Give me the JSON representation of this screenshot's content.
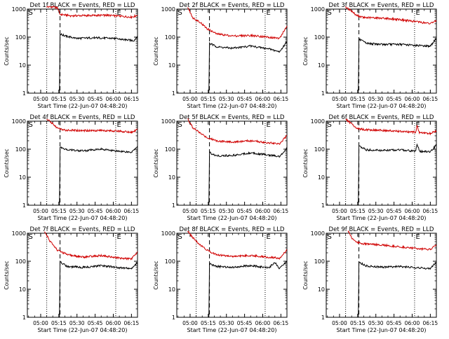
{
  "chart_data": [
    {
      "type": "line",
      "title": "Det 1f BLACK = Events, RED = LLD",
      "xlabel": "Start Time (22-Jun-07 04:48:20)",
      "ylabel": "Counts/sec",
      "yscale": "log",
      "ylim": [
        1,
        1000
      ],
      "xlim": [
        "04:49",
        "06:20"
      ],
      "xticks": [
        "05:00",
        "05:15",
        "05:30",
        "05:45",
        "06:00",
        "06:15"
      ],
      "yticks": [
        "1",
        "10",
        "100",
        "1000"
      ],
      "markers": [
        {
          "label": "S",
          "time": "04:49",
          "style": "dotted"
        },
        {
          "label": "",
          "time": "05:05",
          "style": "dotted"
        },
        {
          "label": "",
          "time": "05:16",
          "style": "dashed"
        },
        {
          "label": "E",
          "time": "06:02",
          "style": "dotted"
        },
        {
          "label": "",
          "time": "06:20",
          "style": "dotted"
        }
      ],
      "series": [
        {
          "name": "LLD",
          "color": "#d00000",
          "x": [
            "05:05",
            "05:10",
            "05:14",
            "05:16",
            "05:25",
            "05:40",
            "05:55",
            "06:05",
            "06:15",
            "06:20"
          ],
          "y": [
            1200,
            1200,
            1100,
            650,
            580,
            590,
            600,
            560,
            520,
            600
          ]
        },
        {
          "name": "Events",
          "color": "#000000",
          "x": [
            "05:15.5",
            "05:16",
            "05:20",
            "05:30",
            "05:45",
            "06:00",
            "06:10",
            "06:17",
            "06:20"
          ],
          "y": [
            1,
            130,
            110,
            90,
            95,
            90,
            80,
            75,
            110
          ]
        }
      ]
    },
    {
      "type": "line",
      "title": "Det 2f BLACK = Events, RED = LLD",
      "xlabel": "Start Time (22-Jun-07 04:48:20)",
      "ylabel": "Counts/sec",
      "yscale": "log",
      "ylim": [
        1,
        1000
      ],
      "xlim": [
        "04:49",
        "06:20"
      ],
      "xticks": [
        "05:00",
        "05:15",
        "05:30",
        "05:45",
        "06:00",
        "06:15"
      ],
      "yticks": [
        "1",
        "10",
        "100",
        "1000"
      ],
      "markers": [
        {
          "label": "S",
          "time": "04:49",
          "style": "dotted"
        },
        {
          "label": "",
          "time": "05:05",
          "style": "dotted"
        },
        {
          "label": "",
          "time": "05:16",
          "style": "dashed"
        },
        {
          "label": "E",
          "time": "06:02",
          "style": "dotted"
        },
        {
          "label": "",
          "time": "06:20",
          "style": "dotted"
        }
      ],
      "series": [
        {
          "name": "LLD",
          "color": "#d00000",
          "x": [
            "04:58",
            "05:02",
            "05:08",
            "05:14",
            "05:22",
            "05:35",
            "05:50",
            "06:05",
            "06:14",
            "06:20"
          ],
          "y": [
            1200,
            500,
            350,
            200,
            130,
            110,
            115,
            100,
            90,
            250
          ]
        },
        {
          "name": "Events",
          "color": "#000000",
          "x": [
            "05:15.5",
            "05:16",
            "05:22",
            "05:35",
            "05:50",
            "06:05",
            "06:14",
            "06:20"
          ],
          "y": [
            1,
            60,
            45,
            40,
            48,
            38,
            30,
            70
          ]
        }
      ]
    },
    {
      "type": "line",
      "title": "Det 3f BLACK = Events, RED = LLD",
      "xlabel": "Start Time (22-Jun-07 04:48:20)",
      "ylabel": "Counts/sec",
      "yscale": "log",
      "ylim": [
        1,
        1000
      ],
      "xlim": [
        "04:49",
        "06:20"
      ],
      "xticks": [
        "05:00",
        "05:15",
        "05:30",
        "05:45",
        "06:00",
        "06:15"
      ],
      "yticks": [
        "1",
        "10",
        "100",
        "1000"
      ],
      "markers": [
        {
          "label": "S",
          "time": "04:49",
          "style": "dotted"
        },
        {
          "label": "",
          "time": "05:05",
          "style": "dotted"
        },
        {
          "label": "",
          "time": "05:16",
          "style": "dashed"
        },
        {
          "label": "E",
          "time": "06:02",
          "style": "dotted"
        },
        {
          "label": "",
          "time": "06:20",
          "style": "dotted"
        }
      ],
      "series": [
        {
          "name": "LLD",
          "color": "#d00000",
          "x": [
            "05:05",
            "05:10",
            "05:14",
            "05:20",
            "05:35",
            "05:50",
            "06:05",
            "06:15",
            "06:20"
          ],
          "y": [
            1200,
            850,
            600,
            500,
            480,
            420,
            350,
            300,
            400
          ]
        },
        {
          "name": "Events",
          "color": "#000000",
          "x": [
            "05:15.5",
            "05:16",
            "05:22",
            "05:35",
            "05:50",
            "06:05",
            "06:15",
            "06:20"
          ],
          "y": [
            1,
            85,
            60,
            55,
            55,
            50,
            48,
            90
          ]
        }
      ]
    },
    {
      "type": "line",
      "title": "Det 4f BLACK = Events, RED = LLD",
      "xlabel": "Start Time (22-Jun-07 04:48:20)",
      "ylabel": "Counts/sec",
      "yscale": "log",
      "ylim": [
        1,
        1000
      ],
      "xlim": [
        "04:49",
        "06:20"
      ],
      "xticks": [
        "05:00",
        "05:15",
        "05:30",
        "05:45",
        "06:00",
        "06:15"
      ],
      "yticks": [
        "1",
        "10",
        "100",
        "1000"
      ],
      "markers": [
        {
          "label": "S",
          "time": "04:49",
          "style": "dotted"
        },
        {
          "label": "",
          "time": "05:05",
          "style": "dotted"
        },
        {
          "label": "",
          "time": "05:16",
          "style": "dashed"
        },
        {
          "label": "E",
          "time": "06:02",
          "style": "dotted"
        },
        {
          "label": "",
          "time": "06:20",
          "style": "dotted"
        }
      ],
      "series": [
        {
          "name": "LLD",
          "color": "#d00000",
          "x": [
            "05:05",
            "05:10",
            "05:14",
            "05:20",
            "05:35",
            "05:50",
            "06:05",
            "06:15",
            "06:20"
          ],
          "y": [
            1200,
            800,
            550,
            480,
            460,
            470,
            440,
            400,
            500
          ]
        },
        {
          "name": "Events",
          "color": "#000000",
          "x": [
            "05:15.5",
            "05:16",
            "05:22",
            "05:35",
            "05:50",
            "06:05",
            "06:15",
            "06:20"
          ],
          "y": [
            1,
            120,
            95,
            88,
            100,
            85,
            78,
            130
          ]
        }
      ]
    },
    {
      "type": "line",
      "title": "Det 5f BLACK = Events, RED = LLD",
      "xlabel": "Start Time (22-Jun-07 04:48:20)",
      "ylabel": "Counts/sec",
      "yscale": "log",
      "ylim": [
        1,
        1000
      ],
      "xlim": [
        "04:49",
        "06:20"
      ],
      "xticks": [
        "05:00",
        "05:15",
        "05:30",
        "05:45",
        "06:00",
        "06:15"
      ],
      "yticks": [
        "1",
        "10",
        "100",
        "1000"
      ],
      "markers": [
        {
          "label": "S",
          "time": "04:49",
          "style": "dotted"
        },
        {
          "label": "",
          "time": "05:05",
          "style": "dotted"
        },
        {
          "label": "",
          "time": "05:16",
          "style": "dashed"
        },
        {
          "label": "E",
          "time": "06:02",
          "style": "dotted"
        },
        {
          "label": "",
          "time": "06:20",
          "style": "dotted"
        }
      ],
      "series": [
        {
          "name": "LLD",
          "color": "#d00000",
          "x": [
            "04:58",
            "05:02",
            "05:08",
            "05:14",
            "05:22",
            "05:35",
            "05:50",
            "06:05",
            "06:14",
            "06:20"
          ],
          "y": [
            1200,
            600,
            380,
            260,
            200,
            180,
            200,
            170,
            160,
            300
          ]
        },
        {
          "name": "Events",
          "color": "#000000",
          "x": [
            "05:15.5",
            "05:16",
            "05:22",
            "05:35",
            "05:50",
            "06:05",
            "06:14",
            "06:20"
          ],
          "y": [
            1,
            75,
            58,
            60,
            75,
            62,
            55,
            110
          ]
        }
      ]
    },
    {
      "type": "line",
      "title": "Det 6f BLACK = Events, RED = LLD",
      "xlabel": "Start Time (22-Jun-07 04:48:20)",
      "ylabel": "Counts/sec",
      "yscale": "log",
      "ylim": [
        1,
        1000
      ],
      "xlim": [
        "04:49",
        "06:20"
      ],
      "xticks": [
        "05:00",
        "05:15",
        "05:30",
        "05:45",
        "06:00",
        "06:15"
      ],
      "yticks": [
        "1",
        "10",
        "100",
        "1000"
      ],
      "markers": [
        {
          "label": "S",
          "time": "04:49",
          "style": "dotted"
        },
        {
          "label": "",
          "time": "05:05",
          "style": "dotted"
        },
        {
          "label": "",
          "time": "05:16",
          "style": "dashed"
        },
        {
          "label": "E",
          "time": "06:02",
          "style": "dotted"
        },
        {
          "label": "",
          "time": "06:20",
          "style": "dotted"
        }
      ],
      "series": [
        {
          "name": "LLD",
          "color": "#d00000",
          "x": [
            "05:05",
            "05:10",
            "05:14",
            "05:20",
            "05:35",
            "05:50",
            "06:03",
            "06:04",
            "06:06",
            "06:15",
            "06:20"
          ],
          "y": [
            1200,
            800,
            560,
            500,
            470,
            430,
            400,
            700,
            390,
            360,
            450
          ]
        },
        {
          "name": "Events",
          "color": "#000000",
          "x": [
            "05:15.5",
            "05:16",
            "05:22",
            "05:35",
            "05:50",
            "06:03",
            "06:04",
            "06:06",
            "06:15",
            "06:20"
          ],
          "y": [
            1,
            130,
            95,
            90,
            95,
            85,
            160,
            84,
            80,
            140
          ]
        }
      ]
    },
    {
      "type": "line",
      "title": "Det 7f BLACK = Events, RED = LLD",
      "xlabel": "Start Time (22-Jun-07 04:48:20)",
      "ylabel": "Counts/sec",
      "yscale": "log",
      "ylim": [
        1,
        1000
      ],
      "xlim": [
        "04:49",
        "06:20"
      ],
      "xticks": [
        "05:00",
        "05:15",
        "05:30",
        "05:45",
        "06:00",
        "06:15"
      ],
      "yticks": [
        "1",
        "10",
        "100",
        "1000"
      ],
      "markers": [
        {
          "label": "S",
          "time": "04:49",
          "style": "dotted"
        },
        {
          "label": "",
          "time": "05:05",
          "style": "dotted"
        },
        {
          "label": "",
          "time": "05:16",
          "style": "dashed"
        },
        {
          "label": "E",
          "time": "06:02",
          "style": "dotted"
        },
        {
          "label": "",
          "time": "06:20",
          "style": "dotted"
        }
      ],
      "series": [
        {
          "name": "LLD",
          "color": "#d00000",
          "x": [
            "05:03",
            "05:08",
            "05:14",
            "05:22",
            "05:35",
            "05:50",
            "06:05",
            "06:15",
            "06:20"
          ],
          "y": [
            1200,
            500,
            250,
            170,
            140,
            160,
            130,
            120,
            220
          ]
        },
        {
          "name": "Events",
          "color": "#000000",
          "x": [
            "05:15.5",
            "05:16",
            "05:22",
            "05:35",
            "05:50",
            "06:05",
            "06:15",
            "06:20"
          ],
          "y": [
            1,
            95,
            65,
            60,
            70,
            58,
            55,
            90
          ]
        }
      ]
    },
    {
      "type": "line",
      "title": "Det 8f BLACK = Events, RED = LLD",
      "xlabel": "Start Time (22-Jun-07 04:48:20)",
      "ylabel": "Counts/sec",
      "yscale": "log",
      "ylim": [
        1,
        1000
      ],
      "xlim": [
        "04:49",
        "06:20"
      ],
      "xticks": [
        "05:00",
        "05:15",
        "05:30",
        "05:45",
        "06:00",
        "06:15"
      ],
      "yticks": [
        "1",
        "10",
        "100",
        "1000"
      ],
      "markers": [
        {
          "label": "S",
          "time": "04:49",
          "style": "dotted"
        },
        {
          "label": "",
          "time": "05:05",
          "style": "dotted"
        },
        {
          "label": "",
          "time": "05:16",
          "style": "dashed"
        },
        {
          "label": "E",
          "time": "06:02",
          "style": "dotted"
        },
        {
          "label": "",
          "time": "06:20",
          "style": "dotted"
        }
      ],
      "series": [
        {
          "name": "LLD",
          "color": "#d00000",
          "x": [
            "04:58",
            "05:02",
            "05:08",
            "05:14",
            "05:22",
            "05:35",
            "05:50",
            "06:05",
            "06:14",
            "06:20"
          ],
          "y": [
            1200,
            700,
            400,
            250,
            170,
            150,
            160,
            140,
            130,
            250
          ]
        },
        {
          "name": "Events",
          "color": "#000000",
          "x": [
            "05:15.5",
            "05:16",
            "05:22",
            "05:35",
            "05:50",
            "06:05",
            "06:10",
            "06:14",
            "06:20"
          ],
          "y": [
            1,
            80,
            65,
            62,
            70,
            58,
            90,
            55,
            100
          ]
        }
      ]
    },
    {
      "type": "line",
      "title": "Det 9f BLACK = Events, RED = LLD",
      "xlabel": "Start Time (22-Jun-07 04:48:20)",
      "ylabel": "Counts/sec",
      "yscale": "log",
      "ylim": [
        1,
        1000
      ],
      "xlim": [
        "04:49",
        "06:20"
      ],
      "xticks": [
        "05:00",
        "05:15",
        "05:30",
        "05:45",
        "06:00",
        "06:15"
      ],
      "yticks": [
        "1",
        "10",
        "100",
        "1000"
      ],
      "markers": [
        {
          "label": "S",
          "time": "04:49",
          "style": "dotted"
        },
        {
          "label": "",
          "time": "05:05",
          "style": "dotted"
        },
        {
          "label": "",
          "time": "05:16",
          "style": "dashed"
        },
        {
          "label": "E",
          "time": "06:02",
          "style": "dotted"
        },
        {
          "label": "",
          "time": "06:20",
          "style": "dotted"
        }
      ],
      "series": [
        {
          "name": "LLD",
          "color": "#d00000",
          "x": [
            "05:07",
            "05:10",
            "05:14",
            "05:20",
            "05:35",
            "05:50",
            "06:05",
            "06:15",
            "06:20"
          ],
          "y": [
            1200,
            700,
            480,
            420,
            380,
            330,
            280,
            260,
            380
          ]
        },
        {
          "name": "Events",
          "color": "#000000",
          "x": [
            "05:15.5",
            "05:16",
            "05:22",
            "05:35",
            "05:50",
            "06:05",
            "06:15",
            "06:20"
          ],
          "y": [
            1,
            95,
            68,
            62,
            65,
            58,
            55,
            95
          ]
        }
      ]
    }
  ]
}
